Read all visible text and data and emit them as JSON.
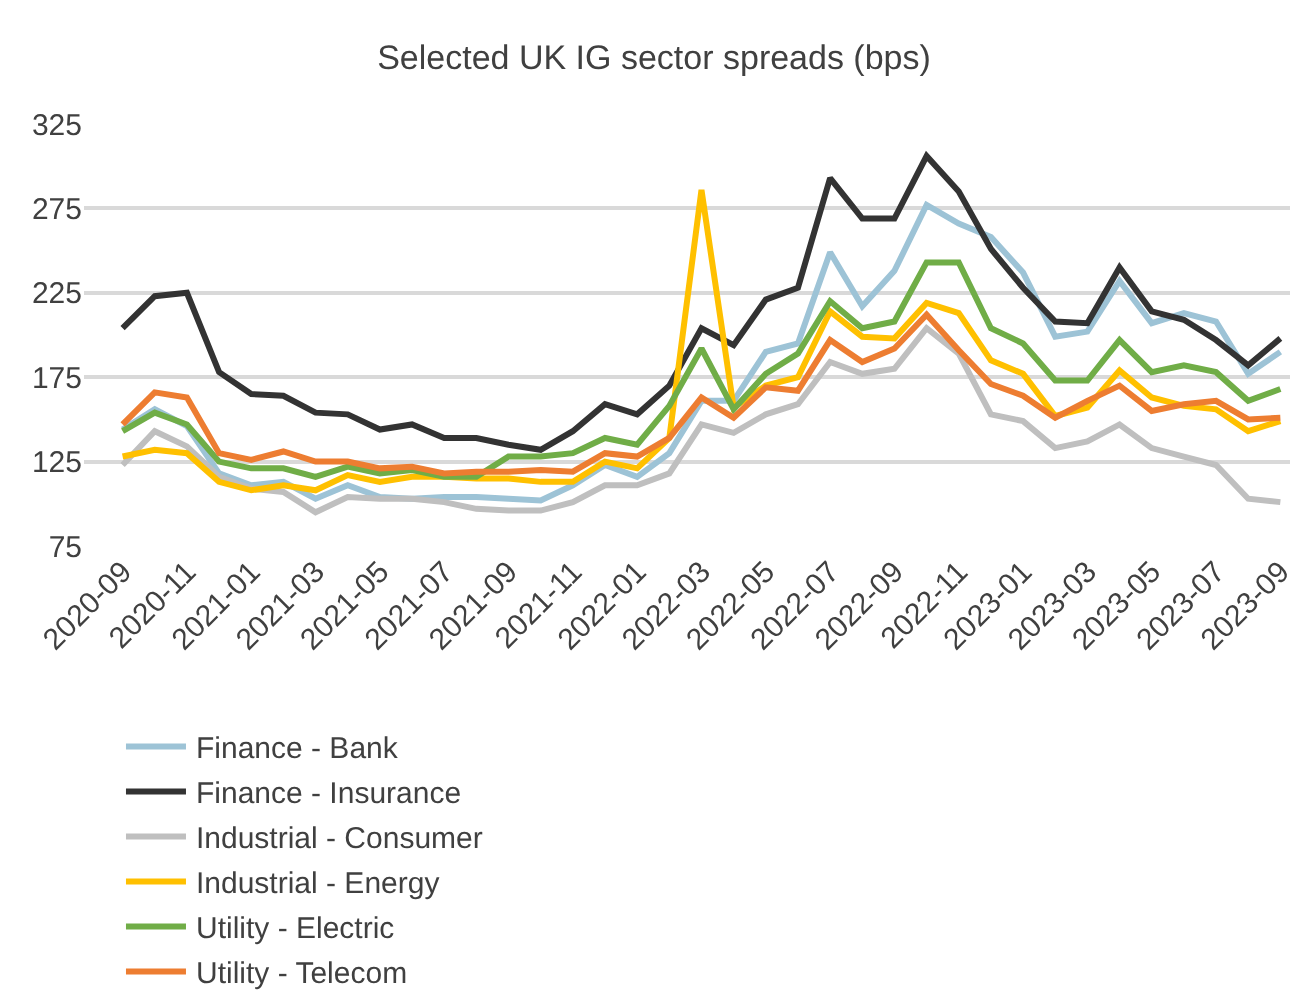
{
  "chart_data": {
    "type": "line",
    "title": "Selected UK IG sector spreads (bps)",
    "categories": [
      "2020-09",
      null,
      "2020-11",
      null,
      "2021-01",
      null,
      "2021-03",
      null,
      "2021-05",
      null,
      "2021-07",
      null,
      "2021-09",
      null,
      "2021-11",
      null,
      "2022-01",
      null,
      "2022-03",
      null,
      "2022-05",
      null,
      "2022-07",
      null,
      "2022-09",
      null,
      "2022-11",
      null,
      "2023-01",
      null,
      "2023-03",
      null,
      "2023-05",
      null,
      "2023-07",
      null,
      "2023-09"
    ],
    "ylim": [
      75,
      325
    ],
    "yticks": [
      75,
      125,
      175,
      225,
      275,
      325
    ],
    "grid": "y",
    "legend": "bottom",
    "line_style": "solid",
    "marker": "none",
    "series": [
      {
        "name": "Finance - Bank",
        "color": "#9dc3d6",
        "values": [
          144,
          156,
          146,
          118,
          111,
          113,
          103,
          111,
          104,
          103,
          104,
          104,
          103,
          102,
          111,
          123,
          116,
          130,
          161,
          161,
          190,
          195,
          249,
          217,
          238,
          277,
          266,
          258,
          237,
          199,
          202,
          232,
          207,
          213,
          208,
          177,
          190
        ]
      },
      {
        "name": "Finance - Insurance",
        "color": "#333333",
        "values": [
          204,
          223,
          225,
          178,
          165,
          164,
          154,
          153,
          144,
          147,
          139,
          139,
          135,
          132,
          143,
          159,
          153,
          170,
          204,
          194,
          221,
          228,
          293,
          269,
          269,
          306,
          285,
          251,
          228,
          208,
          207,
          240,
          214,
          209,
          197,
          182,
          198
        ]
      },
      {
        "name": "Industrial - Consumer",
        "color": "#bfbfbf",
        "values": [
          123,
          143,
          134,
          116,
          109,
          107,
          95,
          104,
          103,
          103,
          101,
          97,
          96,
          96,
          101,
          111,
          111,
          118,
          147,
          142,
          153,
          159,
          184,
          177,
          180,
          204,
          189,
          153,
          149,
          133,
          137,
          147,
          133,
          128,
          123,
          103,
          101
        ]
      },
      {
        "name": "Industrial - Energy",
        "color": "#ffc000",
        "values": [
          128,
          132,
          130,
          113,
          108,
          111,
          108,
          117,
          113,
          116,
          116,
          115,
          115,
          113,
          113,
          125,
          121,
          139,
          286,
          157,
          170,
          175,
          214,
          199,
          198,
          219,
          213,
          185,
          177,
          152,
          157,
          179,
          163,
          158,
          156,
          143,
          149
        ]
      },
      {
        "name": "Utility - Electric",
        "color": "#70ad47",
        "values": [
          143,
          154,
          147,
          125,
          121,
          121,
          116,
          122,
          118,
          120,
          116,
          116,
          128,
          128,
          130,
          139,
          135,
          158,
          192,
          156,
          177,
          189,
          220,
          204,
          208,
          243,
          243,
          204,
          195,
          173,
          173,
          197,
          178,
          182,
          178,
          161,
          168
        ]
      },
      {
        "name": "Utility - Telecom",
        "color": "#ed7d31",
        "values": [
          147,
          166,
          163,
          130,
          126,
          131,
          125,
          125,
          121,
          122,
          118,
          119,
          119,
          120,
          119,
          130,
          128,
          139,
          163,
          151,
          169,
          167,
          197,
          184,
          192,
          212,
          191,
          171,
          164,
          151,
          161,
          170,
          155,
          159,
          161,
          150,
          151
        ]
      }
    ]
  }
}
